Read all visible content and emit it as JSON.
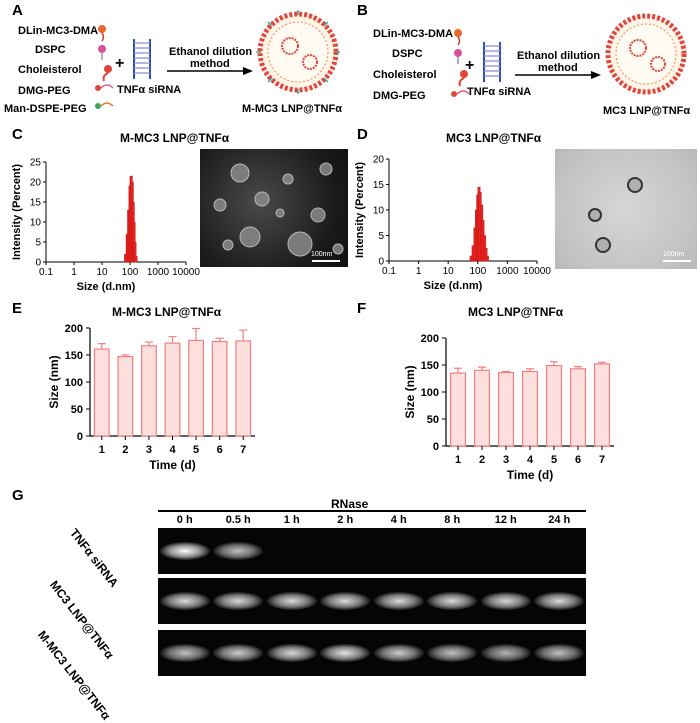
{
  "panels": {
    "A": "A",
    "B": "B",
    "C": "C",
    "D": "D",
    "E": "E",
    "F": "F",
    "G": "G"
  },
  "schemeA": {
    "components": [
      "DLin-MC3-DMA",
      "DSPC",
      "Choleisterol",
      "DMG-PEG",
      "Man-DSPE-PEG"
    ],
    "plus": "+",
    "sirna": "TNFα siRNA",
    "method_line1": "Ethanol dilution",
    "method_line2": "method",
    "product": "M-MC3 LNP@TNFα"
  },
  "schemeB": {
    "components": [
      "DLin-MC3-DMA",
      "DSPC",
      "Choleisterol",
      "DMG-PEG"
    ],
    "plus": "+",
    "sirna": "TNFα siRNA",
    "method_line1": "Ethanol dilution",
    "method_line2": "method",
    "product": "MC3 LNP@TNFα"
  },
  "scale_bar": "100nm",
  "chart_data": [
    {
      "id": "C",
      "type": "bar",
      "title": "M-MC3 LNP@TNFα",
      "xlabel": "Size (d.nm)",
      "ylabel": "Intensity (Percent)",
      "xscale": "log",
      "xticks": [
        "0.1",
        "1",
        "10",
        "100",
        "1000",
        "10000"
      ],
      "yticks": [
        "0",
        "5",
        "10",
        "15",
        "20",
        "25"
      ],
      "ylim": [
        0,
        25
      ],
      "x": [
        70,
        80,
        90,
        100,
        110,
        120,
        130,
        140,
        150,
        165
      ],
      "values": [
        2,
        7,
        13,
        19,
        21.5,
        20,
        15,
        10,
        5,
        1.5
      ]
    },
    {
      "id": "D",
      "type": "bar",
      "title": "MC3 LNP@TNFα",
      "xlabel": "Size (d.nm)",
      "ylabel": "Intensity (Percent)",
      "xscale": "log",
      "xticks": [
        "0.1",
        "1",
        "10",
        "100",
        "1000",
        "10000"
      ],
      "yticks": [
        "0",
        "5",
        "10",
        "15",
        "20"
      ],
      "ylim": [
        0,
        20
      ],
      "x": [
        60,
        70,
        80,
        90,
        100,
        110,
        120,
        135,
        150,
        170,
        190,
        210
      ],
      "values": [
        1,
        3,
        6.5,
        10,
        13,
        14.5,
        13.5,
        11,
        8,
        5,
        2.5,
        1
      ]
    },
    {
      "id": "E",
      "type": "bar",
      "title": "M-MC3 LNP@TNFα",
      "xlabel": "Time (d)",
      "ylabel": "Size (nm)",
      "ylim": [
        0,
        200
      ],
      "yticks": [
        "0",
        "50",
        "100",
        "150",
        "200"
      ],
      "categories": [
        "1",
        "2",
        "3",
        "4",
        "5",
        "6",
        "7"
      ],
      "values": [
        161,
        147,
        167,
        172,
        177,
        175,
        176
      ],
      "errors": [
        10,
        3,
        7,
        12,
        22,
        6,
        20
      ]
    },
    {
      "id": "F",
      "type": "bar",
      "title": "MC3 LNP@TNFα",
      "xlabel": "Time (d)",
      "ylabel": "Size (nm)",
      "ylim": [
        0,
        200
      ],
      "yticks": [
        "0",
        "50",
        "100",
        "150",
        "200"
      ],
      "categories": [
        "1",
        "2",
        "3",
        "4",
        "5",
        "6",
        "7"
      ],
      "values": [
        135,
        140,
        136,
        138,
        149,
        143,
        152
      ],
      "errors": [
        9,
        6,
        2,
        5,
        7,
        4,
        3
      ]
    }
  ],
  "gel": {
    "header": "RNase",
    "lanes": [
      "0 h",
      "0.5 h",
      "1 h",
      "2 h",
      "4 h",
      "8 h",
      "12 h",
      "24 h"
    ],
    "rows": [
      "TNFα siRNA",
      "MC3 LNP@TNFα",
      "M-MC3 LNP@TNFα"
    ],
    "intensity": [
      [
        1.0,
        0.75,
        0,
        0,
        0,
        0,
        0,
        0
      ],
      [
        0.85,
        0.85,
        0.85,
        0.85,
        0.85,
        0.85,
        0.85,
        0.85
      ],
      [
        0.75,
        0.8,
        0.85,
        0.9,
        0.8,
        0.75,
        0.7,
        0.75
      ]
    ]
  }
}
